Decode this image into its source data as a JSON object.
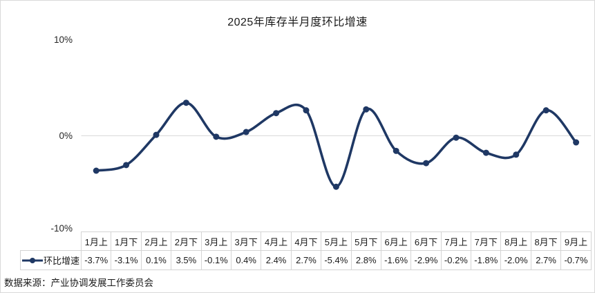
{
  "page": {
    "title": "2025年库存半月度环比增速",
    "source_note": "数据来源：产业协调发展工作委员会"
  },
  "chart_data": {
    "type": "line",
    "title": "2025年库存半月度环比增速",
    "series_name": "环比增速",
    "categories": [
      "1月上",
      "1月下",
      "2月上",
      "2月下",
      "3月上",
      "3月下",
      "4月上",
      "4月下",
      "5月上",
      "5月下",
      "6月上",
      "6月下",
      "7月上",
      "7月下",
      "8月上",
      "8月下",
      "9月上"
    ],
    "values": [
      -3.7,
      -3.1,
      0.1,
      3.5,
      -0.1,
      0.4,
      2.4,
      2.7,
      -5.4,
      2.8,
      -1.6,
      -2.9,
      -0.2,
      -1.8,
      -2.0,
      2.7,
      -0.7
    ],
    "value_labels": [
      "-3.7%",
      "-3.1%",
      "0.1%",
      "3.5%",
      "-0.1%",
      "0.4%",
      "2.4%",
      "2.7%",
      "-5.4%",
      "2.8%",
      "-1.6%",
      "-2.9%",
      "-0.2%",
      "-1.8%",
      "-2.0%",
      "2.7%",
      "-0.7%"
    ],
    "y_ticks": [
      "10%",
      "0%",
      "-10%"
    ],
    "ylim": [
      -10,
      10
    ],
    "unit": "%",
    "smooth": true,
    "grid": "zero-line-only",
    "legend_position": "bottom-table",
    "line_color": "#1F3864",
    "gridline_color": "#D9D9D9",
    "border_color": "#D4D4D4"
  }
}
